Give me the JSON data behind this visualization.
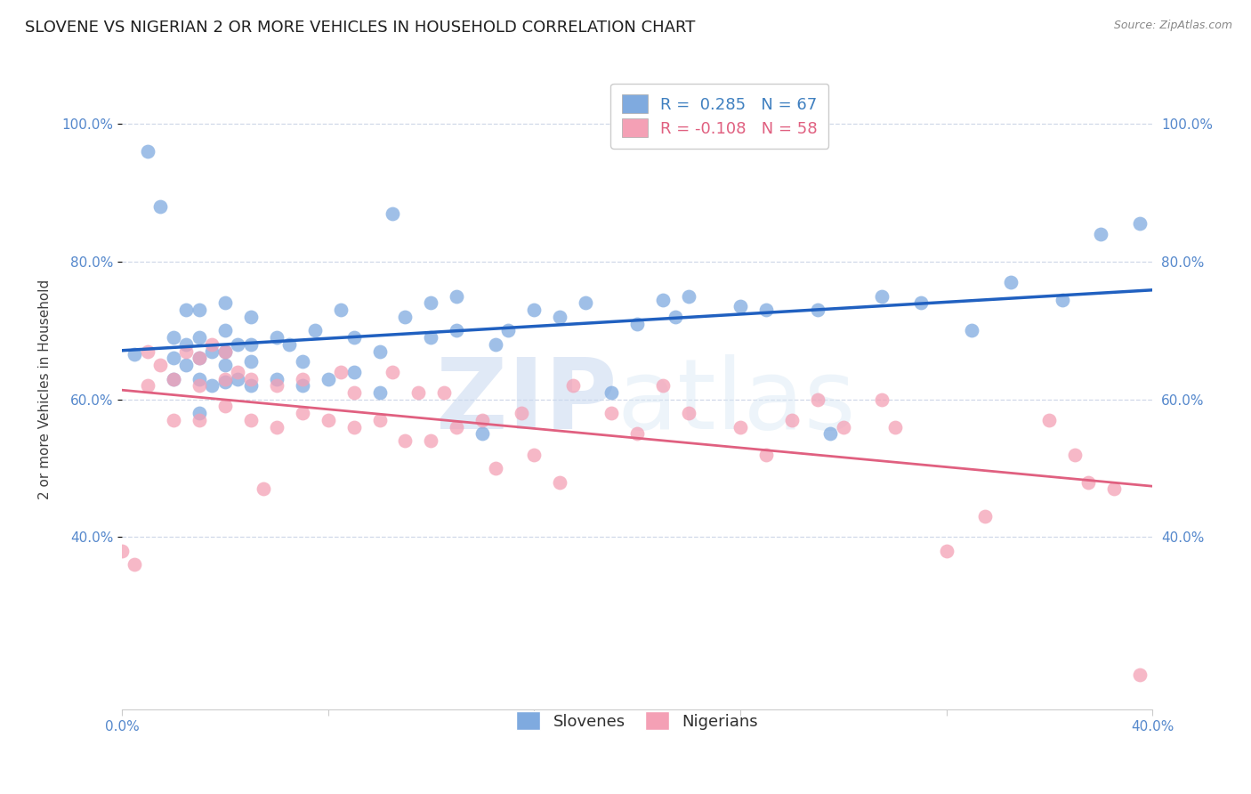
{
  "title": "SLOVENE VS NIGERIAN 2 OR MORE VEHICLES IN HOUSEHOLD CORRELATION CHART",
  "source": "Source: ZipAtlas.com",
  "ylabel": "2 or more Vehicles in Household",
  "xlim": [
    0.0,
    0.4
  ],
  "ylim": [
    0.15,
    1.08
  ],
  "ytick_values": [
    0.4,
    0.6,
    0.8,
    1.0
  ],
  "ytick_labels": [
    "40.0%",
    "60.0%",
    "80.0%",
    "100.0%"
  ],
  "xtick_values": [
    0.0,
    0.08,
    0.16,
    0.24,
    0.32,
    0.4
  ],
  "xtick_labels": [
    "0.0%",
    "",
    "",
    "",
    "",
    "40.0%"
  ],
  "slovene_R": 0.285,
  "slovene_N": 67,
  "nigerian_R": -0.108,
  "nigerian_N": 58,
  "slovene_color": "#7faadf",
  "nigerian_color": "#f4a0b5",
  "slovene_line_color": "#2060c0",
  "nigerian_line_color": "#e06080",
  "slovene_x": [
    0.005,
    0.01,
    0.015,
    0.02,
    0.02,
    0.02,
    0.025,
    0.025,
    0.025,
    0.03,
    0.03,
    0.03,
    0.03,
    0.03,
    0.035,
    0.035,
    0.04,
    0.04,
    0.04,
    0.04,
    0.04,
    0.045,
    0.045,
    0.05,
    0.05,
    0.05,
    0.05,
    0.06,
    0.06,
    0.065,
    0.07,
    0.07,
    0.075,
    0.08,
    0.085,
    0.09,
    0.09,
    0.1,
    0.1,
    0.105,
    0.11,
    0.12,
    0.12,
    0.13,
    0.13,
    0.14,
    0.145,
    0.15,
    0.16,
    0.17,
    0.18,
    0.19,
    0.2,
    0.21,
    0.215,
    0.22,
    0.24,
    0.25,
    0.27,
    0.275,
    0.295,
    0.31,
    0.33,
    0.345,
    0.365,
    0.38,
    0.395
  ],
  "slovene_y": [
    0.665,
    0.96,
    0.88,
    0.63,
    0.66,
    0.69,
    0.65,
    0.68,
    0.73,
    0.58,
    0.63,
    0.66,
    0.69,
    0.73,
    0.62,
    0.67,
    0.625,
    0.65,
    0.67,
    0.7,
    0.74,
    0.63,
    0.68,
    0.62,
    0.655,
    0.68,
    0.72,
    0.63,
    0.69,
    0.68,
    0.62,
    0.655,
    0.7,
    0.63,
    0.73,
    0.64,
    0.69,
    0.61,
    0.67,
    0.87,
    0.72,
    0.69,
    0.74,
    0.7,
    0.75,
    0.55,
    0.68,
    0.7,
    0.73,
    0.72,
    0.74,
    0.61,
    0.71,
    0.745,
    0.72,
    0.75,
    0.735,
    0.73,
    0.73,
    0.55,
    0.75,
    0.74,
    0.7,
    0.77,
    0.745,
    0.84,
    0.855
  ],
  "nigerian_x": [
    0.0,
    0.005,
    0.01,
    0.01,
    0.015,
    0.02,
    0.02,
    0.025,
    0.03,
    0.03,
    0.03,
    0.035,
    0.04,
    0.04,
    0.04,
    0.045,
    0.05,
    0.05,
    0.055,
    0.06,
    0.06,
    0.07,
    0.07,
    0.08,
    0.085,
    0.09,
    0.09,
    0.1,
    0.105,
    0.11,
    0.115,
    0.12,
    0.125,
    0.13,
    0.14,
    0.145,
    0.155,
    0.16,
    0.17,
    0.175,
    0.19,
    0.2,
    0.21,
    0.22,
    0.24,
    0.25,
    0.26,
    0.27,
    0.28,
    0.295,
    0.3,
    0.32,
    0.335,
    0.36,
    0.37,
    0.375,
    0.385,
    0.395
  ],
  "nigerian_y": [
    0.38,
    0.36,
    0.62,
    0.67,
    0.65,
    0.57,
    0.63,
    0.67,
    0.57,
    0.62,
    0.66,
    0.68,
    0.59,
    0.63,
    0.67,
    0.64,
    0.57,
    0.63,
    0.47,
    0.56,
    0.62,
    0.58,
    0.63,
    0.57,
    0.64,
    0.56,
    0.61,
    0.57,
    0.64,
    0.54,
    0.61,
    0.54,
    0.61,
    0.56,
    0.57,
    0.5,
    0.58,
    0.52,
    0.48,
    0.62,
    0.58,
    0.55,
    0.62,
    0.58,
    0.56,
    0.52,
    0.57,
    0.6,
    0.56,
    0.6,
    0.56,
    0.38,
    0.43,
    0.57,
    0.52,
    0.48,
    0.47,
    0.2
  ],
  "background_color": "#ffffff",
  "grid_color": "#d0d8e8",
  "watermark_left": "ZIP",
  "watermark_right": "atlas",
  "title_fontsize": 13,
  "legend_fontsize": 13,
  "axis_label_fontsize": 11,
  "tick_fontsize": 11,
  "tick_color": "#5588cc"
}
